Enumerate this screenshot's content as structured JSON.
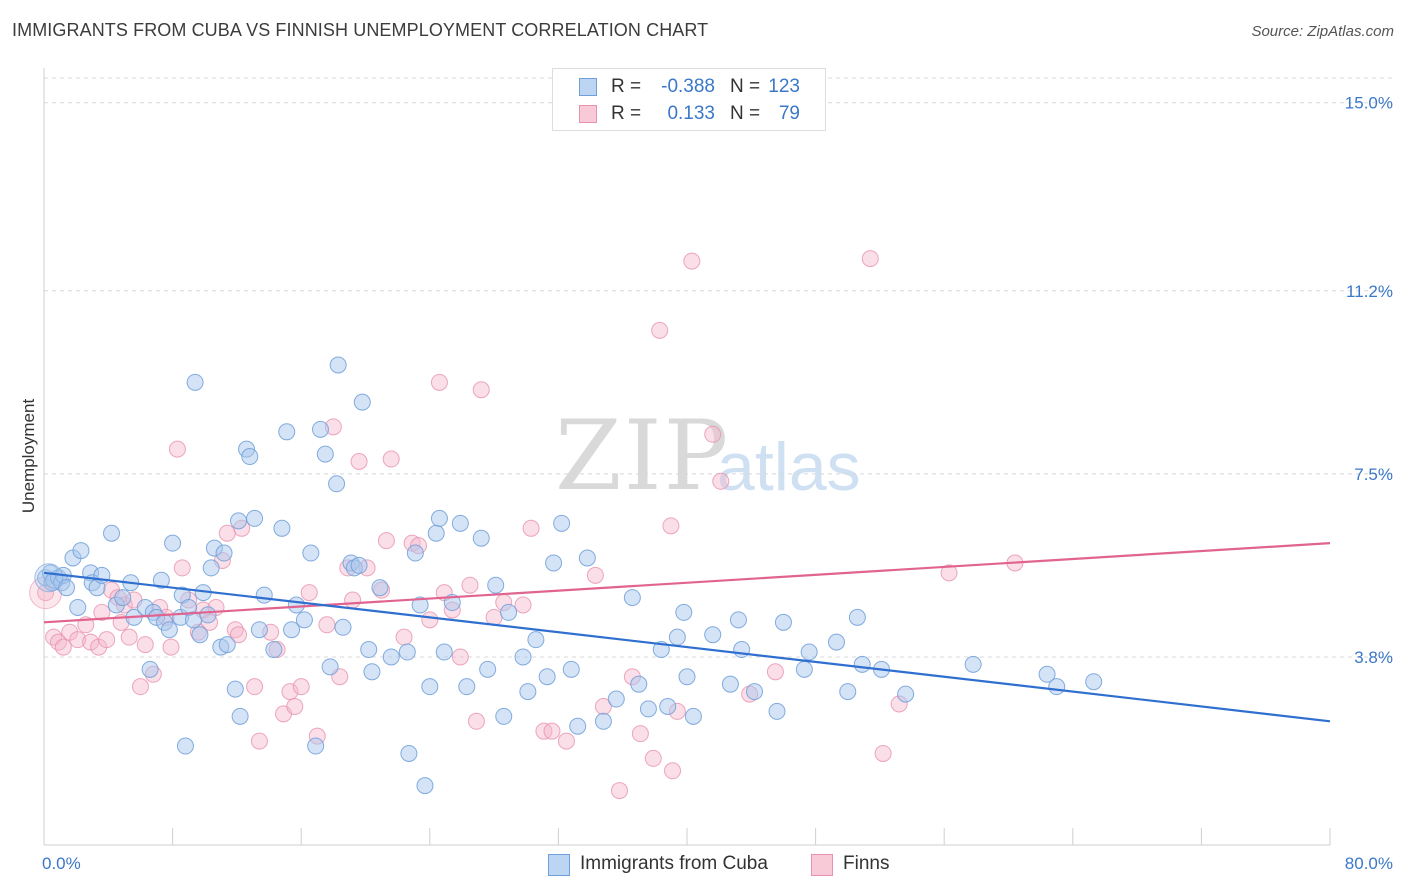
{
  "title": "IMMIGRANTS FROM CUBA VS FINNISH UNEMPLOYMENT CORRELATION CHART",
  "source": "Source: ZipAtlas.com",
  "watermark": {
    "part1": "ZIP",
    "part2": "atlas"
  },
  "legend_top": {
    "rows": [
      {
        "r_label": "R =",
        "r_value": "-0.388",
        "n_label": "N =",
        "n_value": "123"
      },
      {
        "r_label": "R =",
        "r_value": "0.133",
        "n_label": "N =",
        "n_value": "79"
      }
    ]
  },
  "legend_bottom": {
    "items": [
      "Immigrants from Cuba",
      "Finns"
    ]
  },
  "colors": {
    "blue_fill": "#a9c8ee",
    "blue_stroke": "#6e9fd8",
    "blue_line": "#2f6fd0",
    "pink_fill": "#f5b9cc",
    "pink_stroke": "#e991ae",
    "pink_line": "#e0648f",
    "tick_text": "#3b78c9",
    "grid": "#d8d8d8"
  },
  "chart_data": {
    "type": "scatter",
    "title": "IMMIGRANTS FROM CUBA VS FINNISH UNEMPLOYMENT CORRELATION CHART",
    "xlabel": "",
    "ylabel": "Unemployment",
    "xlim": [
      0,
      80
    ],
    "ylim": [
      0,
      15.5
    ],
    "x_tick_labels": [
      "0.0%",
      "80.0%"
    ],
    "y_ticks": [
      3.8,
      7.5,
      11.2,
      15.0
    ],
    "y_tick_labels": [
      "3.8%",
      "7.5%",
      "11.2%",
      "15.0%"
    ],
    "grid": true,
    "legend_position": "top-center",
    "series": [
      {
        "name": "Immigrants from Cuba",
        "color": "#a9c8ee",
        "trend": [
          [
            0,
            5.5
          ],
          [
            80,
            2.5
          ]
        ],
        "points": [
          [
            0.1,
            5.4
          ],
          [
            0.4,
            5.5
          ],
          [
            0.5,
            5.3
          ],
          [
            0.6,
            5.35
          ],
          [
            0.9,
            5.4
          ],
          [
            1.1,
            5.3
          ],
          [
            1.2,
            5.45
          ],
          [
            1.4,
            5.2
          ],
          [
            1.8,
            5.8
          ],
          [
            2.1,
            4.8
          ],
          [
            2.3,
            5.95
          ],
          [
            2.9,
            5.5
          ],
          [
            3.0,
            5.3
          ],
          [
            3.3,
            5.2
          ],
          [
            3.6,
            5.45
          ],
          [
            4.2,
            6.3
          ],
          [
            4.5,
            4.85
          ],
          [
            4.9,
            5.0
          ],
          [
            5.4,
            5.3
          ],
          [
            5.6,
            4.6
          ],
          [
            6.3,
            4.8
          ],
          [
            6.6,
            3.55
          ],
          [
            6.8,
            4.7
          ],
          [
            7.0,
            4.6
          ],
          [
            7.3,
            5.35
          ],
          [
            7.5,
            4.5
          ],
          [
            7.8,
            4.35
          ],
          [
            8.0,
            6.1
          ],
          [
            8.5,
            4.6
          ],
          [
            8.6,
            5.05
          ],
          [
            8.8,
            2.0
          ],
          [
            9.0,
            4.8
          ],
          [
            9.3,
            4.55
          ],
          [
            9.4,
            9.35
          ],
          [
            9.7,
            4.25
          ],
          [
            9.9,
            5.1
          ],
          [
            10.2,
            4.65
          ],
          [
            10.4,
            5.6
          ],
          [
            10.6,
            6.0
          ],
          [
            11.0,
            4.0
          ],
          [
            11.2,
            5.9
          ],
          [
            11.4,
            4.05
          ],
          [
            11.9,
            3.15
          ],
          [
            12.1,
            6.55
          ],
          [
            12.2,
            2.6
          ],
          [
            12.6,
            8.0
          ],
          [
            12.8,
            7.85
          ],
          [
            13.1,
            6.6
          ],
          [
            13.4,
            4.35
          ],
          [
            13.7,
            5.05
          ],
          [
            14.3,
            3.95
          ],
          [
            14.8,
            6.4
          ],
          [
            15.1,
            8.35
          ],
          [
            15.4,
            4.35
          ],
          [
            15.7,
            4.85
          ],
          [
            16.2,
            4.55
          ],
          [
            16.6,
            5.9
          ],
          [
            16.9,
            2.0
          ],
          [
            17.2,
            8.4
          ],
          [
            17.5,
            7.9
          ],
          [
            17.8,
            3.6
          ],
          [
            18.2,
            7.3
          ],
          [
            18.3,
            9.7
          ],
          [
            18.6,
            4.4
          ],
          [
            19.1,
            5.7
          ],
          [
            19.3,
            5.6
          ],
          [
            19.6,
            5.65
          ],
          [
            19.8,
            8.95
          ],
          [
            20.2,
            3.95
          ],
          [
            20.4,
            3.5
          ],
          [
            20.9,
            5.2
          ],
          [
            21.6,
            3.8
          ],
          [
            22.6,
            3.9
          ],
          [
            22.7,
            1.85
          ],
          [
            23.1,
            5.9
          ],
          [
            23.4,
            4.85
          ],
          [
            23.7,
            1.2
          ],
          [
            24.0,
            3.2
          ],
          [
            24.4,
            6.3
          ],
          [
            24.6,
            6.6
          ],
          [
            24.9,
            3.9
          ],
          [
            25.4,
            4.9
          ],
          [
            25.9,
            6.5
          ],
          [
            26.3,
            3.2
          ],
          [
            27.2,
            6.2
          ],
          [
            27.6,
            3.55
          ],
          [
            28.1,
            5.25
          ],
          [
            28.6,
            2.6
          ],
          [
            28.9,
            4.7
          ],
          [
            29.8,
            3.8
          ],
          [
            30.1,
            3.1
          ],
          [
            30.6,
            4.15
          ],
          [
            31.3,
            3.4
          ],
          [
            31.7,
            5.7
          ],
          [
            32.2,
            6.5
          ],
          [
            32.8,
            3.55
          ],
          [
            33.2,
            2.4
          ],
          [
            33.8,
            5.8
          ],
          [
            34.8,
            2.5
          ],
          [
            35.6,
            2.95
          ],
          [
            36.6,
            5.0
          ],
          [
            37.0,
            3.25
          ],
          [
            37.6,
            2.75
          ],
          [
            38.4,
            3.95
          ],
          [
            38.8,
            2.8
          ],
          [
            39.4,
            4.2
          ],
          [
            39.8,
            4.7
          ],
          [
            40.0,
            3.4
          ],
          [
            40.4,
            2.6
          ],
          [
            41.6,
            4.25
          ],
          [
            42.7,
            3.25
          ],
          [
            43.2,
            4.55
          ],
          [
            43.4,
            3.95
          ],
          [
            44.2,
            3.1
          ],
          [
            45.6,
            2.7
          ],
          [
            46.0,
            4.5
          ],
          [
            47.3,
            3.55
          ],
          [
            47.6,
            3.9
          ],
          [
            49.3,
            4.1
          ],
          [
            50.0,
            3.1
          ],
          [
            50.6,
            4.6
          ],
          [
            50.9,
            3.65
          ],
          [
            52.1,
            3.55
          ],
          [
            53.6,
            3.05
          ],
          [
            57.8,
            3.65
          ],
          [
            62.4,
            3.45
          ],
          [
            63.0,
            3.2
          ],
          [
            65.3,
            3.3
          ]
        ]
      },
      {
        "name": "Finns",
        "color": "#f5b9cc",
        "trend": [
          [
            0,
            4.5
          ],
          [
            80,
            6.1
          ]
        ],
        "points": [
          [
            0.1,
            5.1
          ],
          [
            0.6,
            4.2
          ],
          [
            0.9,
            4.1
          ],
          [
            1.2,
            4.0
          ],
          [
            1.6,
            4.3
          ],
          [
            2.1,
            4.15
          ],
          [
            2.6,
            4.45
          ],
          [
            2.9,
            4.1
          ],
          [
            3.4,
            4.0
          ],
          [
            3.6,
            4.7
          ],
          [
            3.9,
            4.15
          ],
          [
            4.2,
            5.15
          ],
          [
            4.6,
            5.0
          ],
          [
            4.8,
            4.5
          ],
          [
            5.0,
            4.85
          ],
          [
            5.3,
            4.2
          ],
          [
            5.6,
            4.95
          ],
          [
            6.0,
            3.2
          ],
          [
            6.3,
            4.05
          ],
          [
            6.8,
            3.45
          ],
          [
            7.2,
            4.8
          ],
          [
            7.6,
            4.6
          ],
          [
            7.9,
            4.0
          ],
          [
            8.3,
            8.0
          ],
          [
            8.6,
            5.6
          ],
          [
            9.0,
            4.95
          ],
          [
            9.6,
            4.3
          ],
          [
            9.9,
            4.75
          ],
          [
            10.3,
            4.5
          ],
          [
            10.7,
            4.8
          ],
          [
            11.1,
            5.75
          ],
          [
            11.4,
            6.3
          ],
          [
            11.9,
            4.35
          ],
          [
            12.1,
            4.25
          ],
          [
            12.3,
            6.4
          ],
          [
            13.1,
            3.2
          ],
          [
            13.4,
            2.1
          ],
          [
            14.1,
            4.3
          ],
          [
            14.5,
            3.95
          ],
          [
            14.9,
            2.65
          ],
          [
            15.3,
            3.1
          ],
          [
            15.6,
            2.8
          ],
          [
            16.0,
            3.2
          ],
          [
            16.5,
            5.1
          ],
          [
            17.0,
            2.2
          ],
          [
            17.6,
            4.45
          ],
          [
            18.0,
            8.45
          ],
          [
            18.4,
            3.4
          ],
          [
            18.9,
            5.6
          ],
          [
            19.2,
            4.95
          ],
          [
            19.6,
            7.75
          ],
          [
            20.1,
            5.6
          ],
          [
            21.0,
            5.15
          ],
          [
            21.3,
            6.15
          ],
          [
            21.6,
            7.8
          ],
          [
            22.4,
            4.2
          ],
          [
            22.9,
            6.1
          ],
          [
            23.3,
            6.05
          ],
          [
            24.0,
            4.55
          ],
          [
            24.6,
            9.35
          ],
          [
            24.9,
            5.1
          ],
          [
            25.4,
            4.75
          ],
          [
            25.9,
            3.8
          ],
          [
            26.5,
            5.25
          ],
          [
            26.9,
            2.5
          ],
          [
            27.2,
            9.2
          ],
          [
            28.0,
            4.6
          ],
          [
            28.6,
            4.9
          ],
          [
            29.8,
            4.85
          ],
          [
            30.3,
            6.4
          ],
          [
            31.1,
            2.3
          ],
          [
            31.6,
            2.3
          ],
          [
            32.5,
            2.1
          ],
          [
            34.3,
            5.45
          ],
          [
            34.8,
            2.8
          ],
          [
            35.8,
            1.1
          ],
          [
            36.6,
            3.4
          ],
          [
            37.1,
            2.25
          ],
          [
            37.9,
            1.75
          ],
          [
            38.3,
            10.4
          ],
          [
            39.0,
            6.45
          ],
          [
            39.1,
            1.5
          ],
          [
            39.4,
            2.7
          ],
          [
            40.3,
            11.8
          ],
          [
            41.6,
            8.3
          ],
          [
            42.1,
            7.35
          ],
          [
            43.9,
            3.05
          ],
          [
            45.5,
            3.5
          ],
          [
            51.4,
            11.85
          ],
          [
            52.2,
            1.85
          ],
          [
            53.2,
            2.85
          ],
          [
            56.3,
            5.5
          ],
          [
            60.4,
            5.7
          ]
        ]
      }
    ]
  }
}
